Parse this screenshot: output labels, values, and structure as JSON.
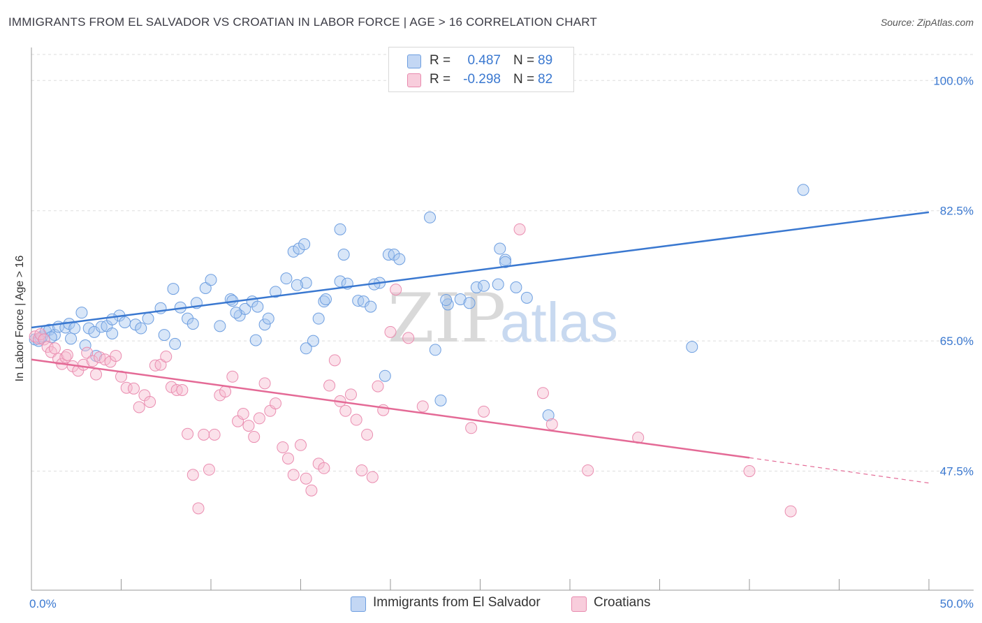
{
  "header": {
    "title": "IMMIGRANTS FROM EL SALVADOR VS CROATIAN IN LABOR FORCE | AGE > 16 CORRELATION CHART",
    "source": "Source: ZipAtlas.com"
  },
  "legend": {
    "rows": [
      {
        "r_label": "R =",
        "r_value": "0.487",
        "n_label": "N =",
        "n_value": "89"
      },
      {
        "r_label": "R =",
        "r_value": "-0.298",
        "n_label": "N =",
        "n_value": "82"
      }
    ]
  },
  "bottom_legend": {
    "series1": "Immigrants from El Salvador",
    "series2": "Croatians"
  },
  "watermark": {
    "zip": "ZIP",
    "atlas": "atlas"
  },
  "colors": {
    "blue": "#3a78d0",
    "blue_fill": "#a9c7f0",
    "pink": "#e46a96",
    "pink_fill": "#f6bcd0",
    "grid": "#dddddd",
    "tick_label": "#3a78d0"
  },
  "chart_data": {
    "type": "scatter",
    "title": "IMMIGRANTS FROM EL SALVADOR VS CROATIAN IN LABOR FORCE | AGE > 16 CORRELATION CHART",
    "xlabel": "",
    "ylabel": "In Labor Force | Age > 16",
    "xlim": [
      0,
      50
    ],
    "ylim": [
      31.5,
      103.5
    ],
    "x_tick_labels": [
      "0.0%",
      "50.0%"
    ],
    "y_ticks": [
      47.5,
      65.0,
      82.5,
      100.0
    ],
    "y_tick_labels": [
      "47.5%",
      "65.0%",
      "82.5%",
      "100.0%"
    ],
    "grid": true,
    "legend_position": "top-center",
    "series": [
      {
        "name": "Immigrants from El Salvador",
        "color": "#3a78d0",
        "r": 0.487,
        "n": 89,
        "trend": {
          "x0": 0,
          "y0": 66.8,
          "x1": 50,
          "y1": 82.3
        },
        "points": [
          [
            0.2,
            65.2
          ],
          [
            0.4,
            65.0
          ],
          [
            0.5,
            65.4
          ],
          [
            0.6,
            65.6
          ],
          [
            0.8,
            66.3
          ],
          [
            1.0,
            66.5
          ],
          [
            1.3,
            65.8
          ],
          [
            1.5,
            66.9
          ],
          [
            1.9,
            66.8
          ],
          [
            2.1,
            67.3
          ],
          [
            2.4,
            66.7
          ],
          [
            2.8,
            68.8
          ],
          [
            3.2,
            66.7
          ],
          [
            3.5,
            66.2
          ],
          [
            3.9,
            66.9
          ],
          [
            4.2,
            67.0
          ],
          [
            4.5,
            66.0
          ],
          [
            4.9,
            68.4
          ],
          [
            4.5,
            67.9
          ],
          [
            5.2,
            67.5
          ],
          [
            5.8,
            67.2
          ],
          [
            6.1,
            66.7
          ],
          [
            6.5,
            68.0
          ],
          [
            7.2,
            69.4
          ],
          [
            7.4,
            65.8
          ],
          [
            7.9,
            72.0
          ],
          [
            8.0,
            64.6
          ],
          [
            8.3,
            69.5
          ],
          [
            8.7,
            68.0
          ],
          [
            9.2,
            70.1
          ],
          [
            9.0,
            67.3
          ],
          [
            9.7,
            72.1
          ],
          [
            10.0,
            73.2
          ],
          [
            10.5,
            67.0
          ],
          [
            11.1,
            70.6
          ],
          [
            11.2,
            70.4
          ],
          [
            11.6,
            68.4
          ],
          [
            11.9,
            69.3
          ],
          [
            12.3,
            70.3
          ],
          [
            12.6,
            69.6
          ],
          [
            13.0,
            67.2
          ],
          [
            13.2,
            68.0
          ],
          [
            13.6,
            71.6
          ],
          [
            14.2,
            73.4
          ],
          [
            14.6,
            77.0
          ],
          [
            14.9,
            77.4
          ],
          [
            15.2,
            78.0
          ],
          [
            15.3,
            72.8
          ],
          [
            15.7,
            65.0
          ],
          [
            16.0,
            68.0
          ],
          [
            16.3,
            70.3
          ],
          [
            16.4,
            70.6
          ],
          [
            17.2,
            73.0
          ],
          [
            17.6,
            72.7
          ],
          [
            17.2,
            80.0
          ],
          [
            17.4,
            76.6
          ],
          [
            18.2,
            70.4
          ],
          [
            18.5,
            70.3
          ],
          [
            18.9,
            69.6
          ],
          [
            19.4,
            72.8
          ],
          [
            19.9,
            76.6
          ],
          [
            20.2,
            76.6
          ],
          [
            20.5,
            76.0
          ],
          [
            19.7,
            60.3
          ],
          [
            22.5,
            63.8
          ],
          [
            22.2,
            81.6
          ],
          [
            23.2,
            69.9
          ],
          [
            23.9,
            70.6
          ],
          [
            24.4,
            70.1
          ],
          [
            24.8,
            72.2
          ],
          [
            25.2,
            72.4
          ],
          [
            26.1,
            77.4
          ],
          [
            26.4,
            75.9
          ],
          [
            27.0,
            72.2
          ],
          [
            27.6,
            70.8
          ],
          [
            28.8,
            55.0
          ],
          [
            22.8,
            57.0
          ],
          [
            15.3,
            64.0
          ],
          [
            23.1,
            70.5
          ],
          [
            11.4,
            68.8
          ],
          [
            3.6,
            63.0
          ],
          [
            2.2,
            65.3
          ],
          [
            3.0,
            64.4
          ],
          [
            1.1,
            65.5
          ],
          [
            12.5,
            65.1
          ],
          [
            14.8,
            72.5
          ],
          [
            19.1,
            72.6
          ],
          [
            26.4,
            75.6
          ],
          [
            26.0,
            72.6
          ],
          [
            36.8,
            64.2
          ],
          [
            43.0,
            85.3
          ]
        ]
      },
      {
        "name": "Croatians",
        "color": "#e46a96",
        "r": -0.298,
        "n": 82,
        "trend": {
          "x0": 0,
          "y0": 62.5,
          "x1": 40,
          "y1": 49.3
        },
        "trend_dashed": {
          "x0": 40,
          "y0": 49.3,
          "x1": 50,
          "y1": 45.9
        },
        "points": [
          [
            0.2,
            65.6
          ],
          [
            0.4,
            65.3
          ],
          [
            0.5,
            65.9
          ],
          [
            0.7,
            65.2
          ],
          [
            0.9,
            64.2
          ],
          [
            1.1,
            63.5
          ],
          [
            1.3,
            64.0
          ],
          [
            1.5,
            62.6
          ],
          [
            1.7,
            61.9
          ],
          [
            1.9,
            62.8
          ],
          [
            2.0,
            63.1
          ],
          [
            2.3,
            61.6
          ],
          [
            2.6,
            61.0
          ],
          [
            2.9,
            61.8
          ],
          [
            3.1,
            63.4
          ],
          [
            3.4,
            62.3
          ],
          [
            3.6,
            60.5
          ],
          [
            3.8,
            62.8
          ],
          [
            4.1,
            62.5
          ],
          [
            4.4,
            62.2
          ],
          [
            4.7,
            63.0
          ],
          [
            5.0,
            60.2
          ],
          [
            5.3,
            58.7
          ],
          [
            5.7,
            58.6
          ],
          [
            6.0,
            56.1
          ],
          [
            6.3,
            57.7
          ],
          [
            6.6,
            56.8
          ],
          [
            6.9,
            61.7
          ],
          [
            7.2,
            61.8
          ],
          [
            7.5,
            62.9
          ],
          [
            7.8,
            58.8
          ],
          [
            8.1,
            58.4
          ],
          [
            8.4,
            58.4
          ],
          [
            8.7,
            52.5
          ],
          [
            9.0,
            47.0
          ],
          [
            9.3,
            42.5
          ],
          [
            9.6,
            52.4
          ],
          [
            9.9,
            47.7
          ],
          [
            10.2,
            52.4
          ],
          [
            10.5,
            57.7
          ],
          [
            10.8,
            58.2
          ],
          [
            11.2,
            60.2
          ],
          [
            11.5,
            54.2
          ],
          [
            11.8,
            55.2
          ],
          [
            12.1,
            53.6
          ],
          [
            12.4,
            52.1
          ],
          [
            12.7,
            54.6
          ],
          [
            13.0,
            59.3
          ],
          [
            13.3,
            55.6
          ],
          [
            13.6,
            56.6
          ],
          [
            14.0,
            50.7
          ],
          [
            14.3,
            49.2
          ],
          [
            14.6,
            47.0
          ],
          [
            15.0,
            51.0
          ],
          [
            15.3,
            46.5
          ],
          [
            15.6,
            44.9
          ],
          [
            16.0,
            48.5
          ],
          [
            16.3,
            47.9
          ],
          [
            16.6,
            59.0
          ],
          [
            16.9,
            62.4
          ],
          [
            17.2,
            56.9
          ],
          [
            17.5,
            55.6
          ],
          [
            17.8,
            57.8
          ],
          [
            18.1,
            54.4
          ],
          [
            18.4,
            47.6
          ],
          [
            18.7,
            52.4
          ],
          [
            19.0,
            46.7
          ],
          [
            19.3,
            58.9
          ],
          [
            19.6,
            55.7
          ],
          [
            20.0,
            66.2
          ],
          [
            20.3,
            71.9
          ],
          [
            21.0,
            65.4
          ],
          [
            21.8,
            56.2
          ],
          [
            24.5,
            53.3
          ],
          [
            27.2,
            80.0
          ],
          [
            28.5,
            58.0
          ],
          [
            25.2,
            55.5
          ],
          [
            29.0,
            53.8
          ],
          [
            33.8,
            52.0
          ],
          [
            31.0,
            47.6
          ],
          [
            40.0,
            47.5
          ],
          [
            42.3,
            42.1
          ]
        ]
      }
    ]
  }
}
